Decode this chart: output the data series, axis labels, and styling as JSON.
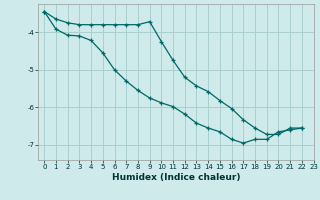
{
  "xlabel": "Humidex (Indice chaleur)",
  "background_color": "#ceeaea",
  "grid_color": "#aacece",
  "line_color": "#006868",
  "xlim": [
    -0.5,
    23
  ],
  "ylim": [
    -7.4,
    -3.25
  ],
  "yticks": [
    -7,
    -6,
    -5,
    -4
  ],
  "xticks": [
    0,
    1,
    2,
    3,
    4,
    5,
    6,
    7,
    8,
    9,
    10,
    11,
    12,
    13,
    14,
    15,
    16,
    17,
    18,
    19,
    20,
    21,
    22,
    23
  ],
  "line1_x": [
    0,
    1,
    2,
    3,
    4,
    5,
    6,
    7,
    8,
    9,
    10,
    11,
    12,
    13,
    14,
    15,
    16,
    17,
    18,
    19,
    20,
    21,
    22
  ],
  "line1_y": [
    -3.45,
    -3.65,
    -3.75,
    -3.8,
    -3.8,
    -3.8,
    -3.8,
    -3.8,
    -3.8,
    -3.72,
    -4.25,
    -4.75,
    -5.2,
    -5.43,
    -5.58,
    -5.82,
    -6.03,
    -6.33,
    -6.55,
    -6.72,
    -6.72,
    -6.55,
    -6.55
  ],
  "line2_x": [
    0,
    1,
    2,
    3,
    4,
    5,
    6,
    7,
    8,
    9,
    10,
    11,
    12,
    13,
    14,
    15,
    16,
    17,
    18,
    19,
    20,
    21,
    22
  ],
  "line2_y": [
    -3.45,
    -3.92,
    -4.08,
    -4.1,
    -4.22,
    -4.55,
    -5.0,
    -5.3,
    -5.55,
    -5.75,
    -5.88,
    -5.98,
    -6.18,
    -6.42,
    -6.55,
    -6.65,
    -6.85,
    -6.95,
    -6.85,
    -6.85,
    -6.65,
    -6.6,
    -6.55
  ]
}
